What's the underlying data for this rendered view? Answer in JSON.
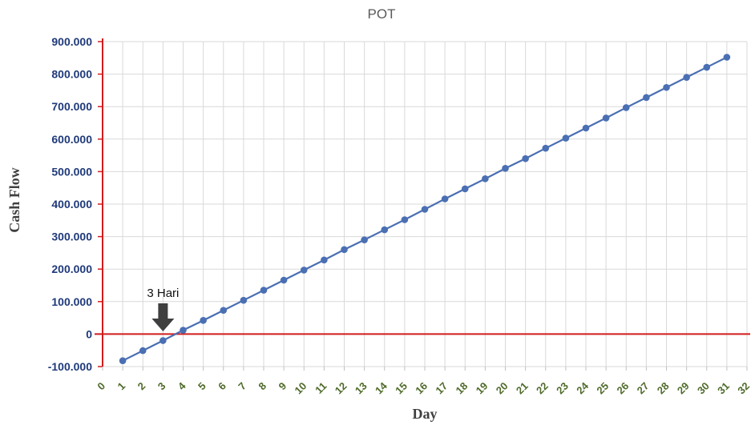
{
  "chart_data": {
    "type": "line",
    "title": "POT",
    "xlabel": "Day",
    "ylabel": "Cash Flow",
    "xlim": [
      0,
      32
    ],
    "ylim": [
      -100000,
      900000
    ],
    "x_ticks": [
      "0",
      "1",
      "2",
      "3",
      "4",
      "5",
      "6",
      "7",
      "8",
      "9",
      "10",
      "11",
      "12",
      "13",
      "14",
      "15",
      "16",
      "17",
      "18",
      "19",
      "20",
      "21",
      "22",
      "23",
      "24",
      "25",
      "26",
      "27",
      "28",
      "29",
      "30",
      "31",
      "32"
    ],
    "y_ticks": [
      "-100.000",
      "0",
      "100.000",
      "200.000",
      "300.000",
      "400.000",
      "500.000",
      "600.000",
      "700.000",
      "800.000",
      "900.000"
    ],
    "grid": true,
    "colors": {
      "line": "#4a6fb3",
      "marker": "#4a6fb3",
      "axis": "#d11c1c",
      "grid": "#d9d9d9"
    },
    "series": [
      {
        "x": [
          1,
          2,
          3,
          4,
          5,
          6,
          7,
          8,
          9,
          10,
          11,
          12,
          13,
          14,
          15,
          16,
          17,
          18,
          19,
          20,
          21,
          22,
          23,
          24,
          25,
          26,
          27,
          28,
          29,
          30,
          31
        ],
        "values": [
          -82000,
          -51000,
          -20000,
          12000,
          42000,
          73000,
          104000,
          135000,
          166000,
          197000,
          228000,
          260000,
          290000,
          321000,
          352000,
          384000,
          416000,
          447000,
          478000,
          510000,
          540000,
          572000,
          603000,
          634000,
          665000,
          697000,
          728000,
          759000,
          790000,
          821000,
          852000
        ]
      }
    ],
    "annotation": {
      "text": "3 Hari",
      "x": 3,
      "arrow-icon": "down-arrow-icon"
    }
  }
}
